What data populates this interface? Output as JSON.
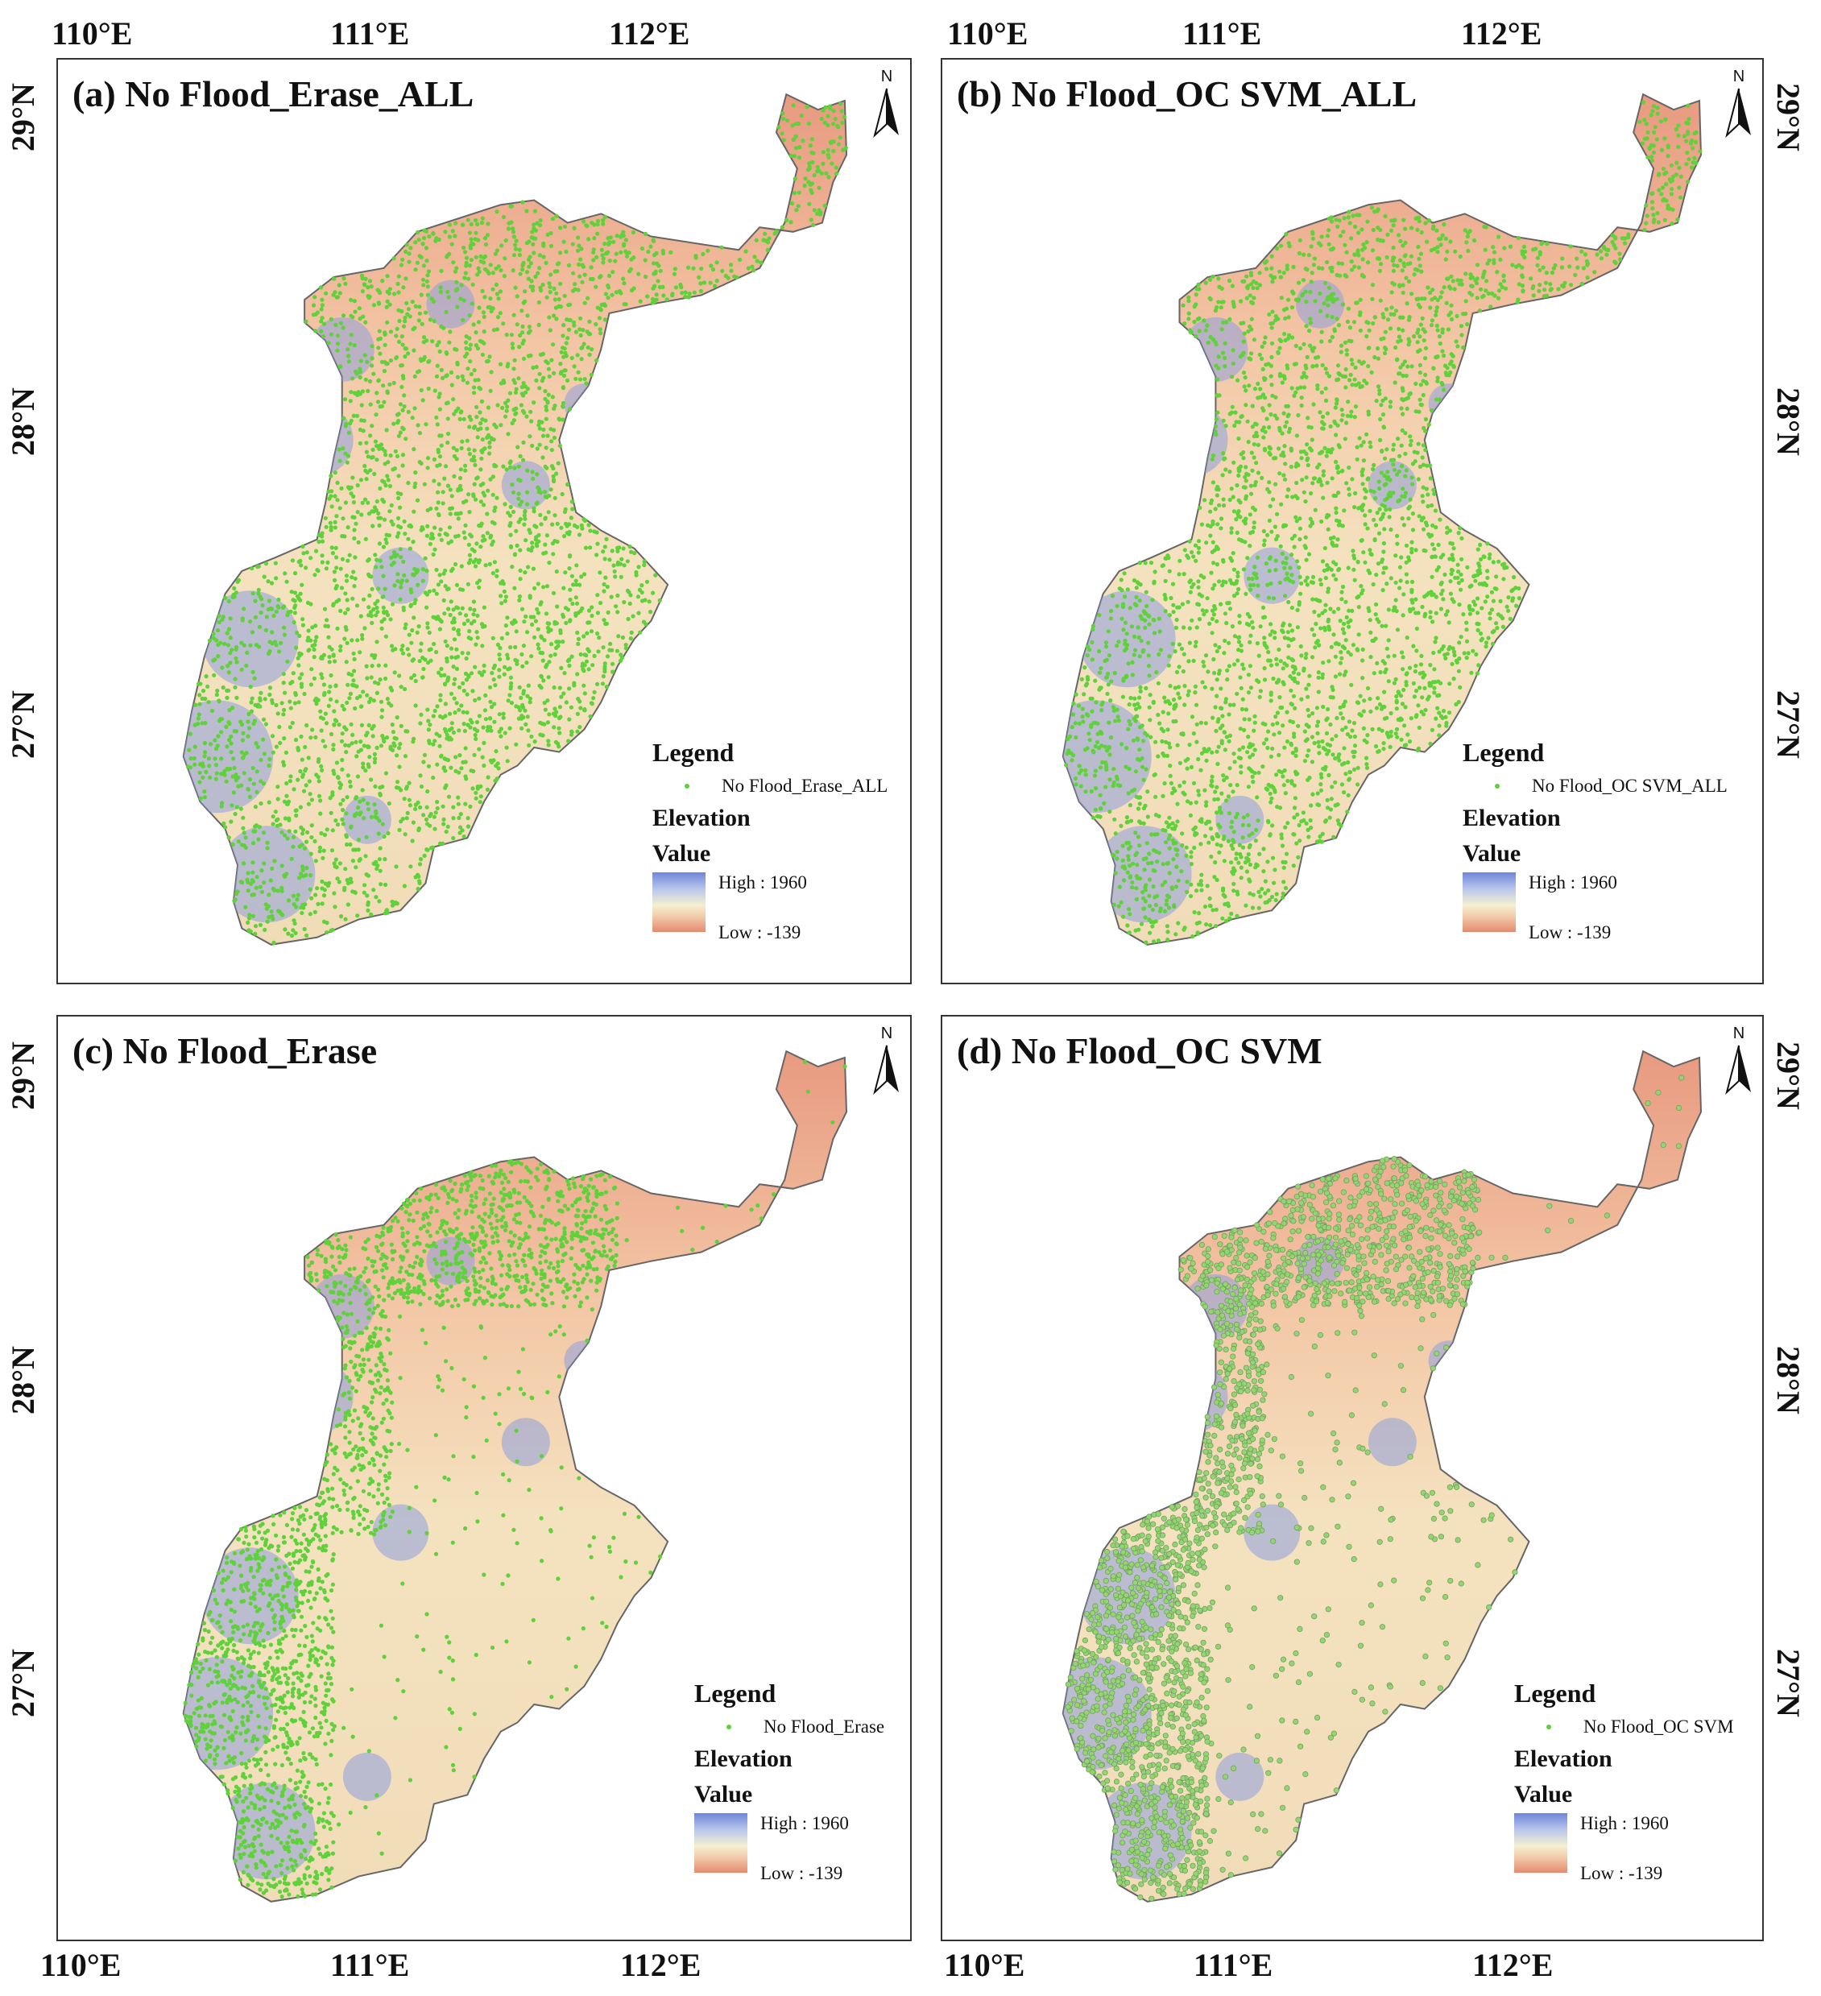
{
  "lon_labels": [
    "110°E",
    "111°E",
    "112°E"
  ],
  "lat_labels": [
    "29°N",
    "28°N",
    "27°N"
  ],
  "north_letter": "N",
  "colors": {
    "point": "#5fd13a",
    "elev_high": "#6f86da",
    "elev_mid": "#f4f0d0",
    "elev_low": "#e58a6e",
    "frame": "#333333"
  },
  "panels": [
    {
      "title": "(a) No Flood_Erase_ALL",
      "legend": {
        "title": "Legend",
        "point_label": "No Flood_Erase_ALL",
        "elevation": "Elevation",
        "value": "Value",
        "high": "High : 1960",
        "low": "Low : -139"
      }
    },
    {
      "title": "(b) No Flood_OC SVM_ALL",
      "legend": {
        "title": "Legend",
        "point_label": "No Flood_OC SVM_ALL",
        "elevation": "Elevation",
        "value": "Value",
        "high": "High : 1960",
        "low": "Low : -139"
      }
    },
    {
      "title": "(c) No Flood_Erase",
      "legend": {
        "title": "Legend",
        "point_label": "No Flood_Erase",
        "elevation": "Elevation",
        "value": "Value",
        "high": "High : 1960",
        "low": "Low : -139"
      }
    },
    {
      "title": "(d) No Flood_OC SVM",
      "legend": {
        "title": "Legend",
        "point_label": "No Flood_OC SVM",
        "elevation": "Elevation",
        "value": "Value",
        "high": "High : 1960",
        "low": "Low : -139"
      }
    }
  ]
}
